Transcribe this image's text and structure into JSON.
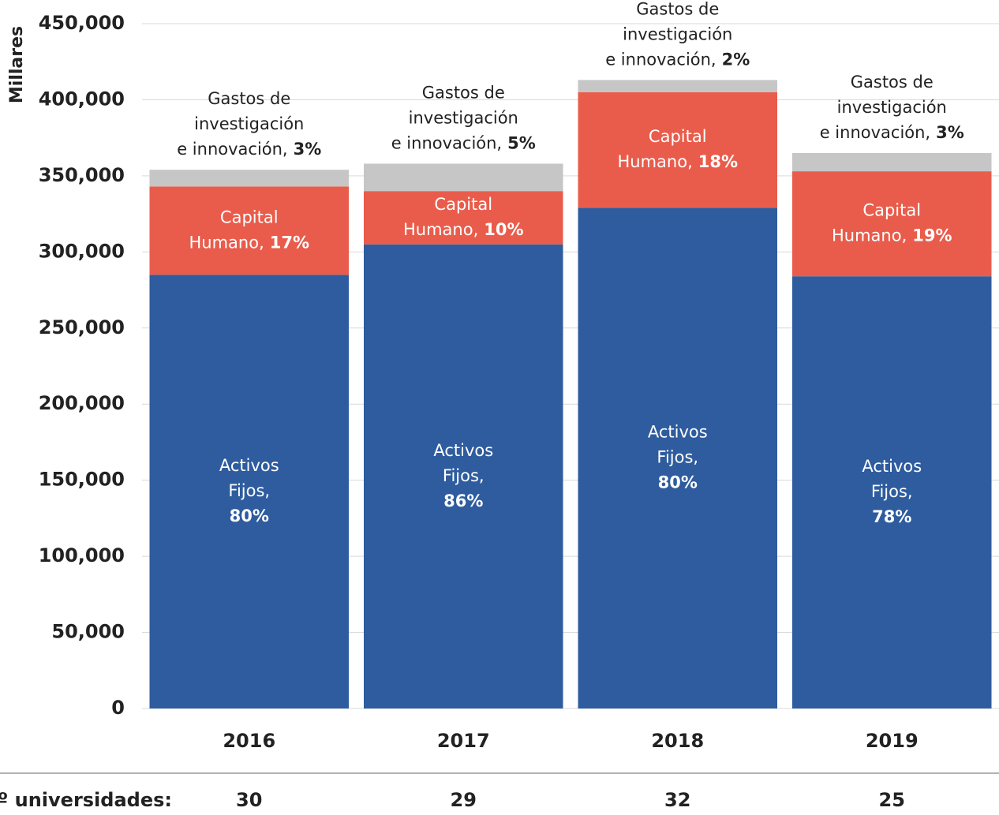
{
  "chart_data": {
    "type": "stacked_bar",
    "y_axis_label": "Millares",
    "categories": [
      "2016",
      "2017",
      "2018",
      "2019"
    ],
    "ylim": [
      0,
      450000
    ],
    "yticks": [
      0,
      {
        "value": 50000,
        "label": "50,000"
      },
      {
        "value": 100000,
        "label": "100,000"
      },
      {
        "value": 150000,
        "label": "150,000"
      },
      {
        "value": 200000,
        "label": "200,000"
      },
      {
        "value": 250000,
        "label": "250,000"
      },
      {
        "value": 300000,
        "label": "300,000"
      },
      {
        "value": 350000,
        "label": "350,000"
      },
      {
        "value": 400000,
        "label": "400,000"
      },
      {
        "value": 450000,
        "label": "450,000"
      }
    ],
    "grid": true,
    "series": [
      {
        "label_lines": [
          "Activos",
          "Fijos,"
        ],
        "color": "#2e5c9e",
        "label_position": "inside",
        "share_inline": false,
        "label_color": "#ffffff",
        "values": [
          285000,
          305000,
          329000,
          284000
        ],
        "shares": [
          "80%",
          "86%",
          "80%",
          "78%"
        ]
      },
      {
        "label_lines": [
          "Capital",
          "Humano,"
        ],
        "color": "#e95c4b",
        "label_position": "inside",
        "share_inline": true,
        "label_color": "#ffffff",
        "values": [
          58000,
          35000,
          76000,
          69000
        ],
        "shares": [
          "17%",
          "10%",
          "18%",
          "19%"
        ]
      },
      {
        "label_lines": [
          "Gastos de",
          "investigación",
          "e innovación,"
        ],
        "color": "#c6c6c6",
        "label_position": "above",
        "share_inline": true,
        "label_color": "#222222",
        "values": [
          11000,
          18000,
          8000,
          12000
        ],
        "shares": [
          "3%",
          "5%",
          "2%",
          "3%"
        ]
      }
    ],
    "footer": {
      "label": "Nº universidades:",
      "values": [
        "30",
        "29",
        "32",
        "25"
      ]
    }
  }
}
